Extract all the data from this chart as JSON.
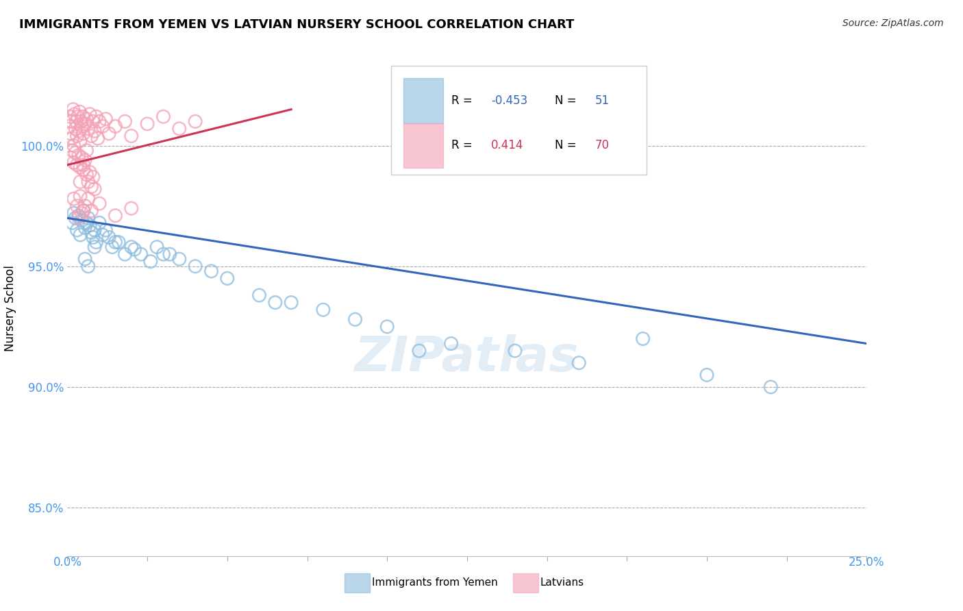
{
  "title": "IMMIGRANTS FROM YEMEN VS LATVIAN NURSERY SCHOOL CORRELATION CHART",
  "source": "Source: ZipAtlas.com",
  "ylabel": "Nursery School",
  "yticks": [
    85.0,
    90.0,
    95.0,
    100.0
  ],
  "ylim": [
    83.0,
    103.5
  ],
  "xlim": [
    0.0,
    25.0
  ],
  "blue_color": "#8bbcde",
  "pink_color": "#f4a0b5",
  "blue_line_color": "#3366bb",
  "pink_line_color": "#cc3355",
  "blue_scatter_x": [
    0.15,
    0.2,
    0.25,
    0.3,
    0.35,
    0.4,
    0.45,
    0.5,
    0.55,
    0.6,
    0.65,
    0.7,
    0.75,
    0.8,
    0.85,
    0.9,
    1.0,
    1.1,
    1.2,
    1.4,
    1.6,
    1.8,
    2.0,
    2.3,
    2.6,
    3.0,
    3.5,
    4.0,
    5.0,
    6.0,
    7.0,
    8.0,
    9.0,
    10.0,
    12.0,
    14.0,
    16.0,
    18.0,
    20.0,
    22.0,
    1.3,
    1.5,
    2.1,
    2.8,
    3.2,
    4.5,
    6.5,
    11.0,
    0.55,
    0.65,
    0.85
  ],
  "blue_scatter_y": [
    96.8,
    97.2,
    97.0,
    96.5,
    97.1,
    96.3,
    96.9,
    97.3,
    96.6,
    96.8,
    97.0,
    96.7,
    96.4,
    96.2,
    96.5,
    96.0,
    96.8,
    96.3,
    96.5,
    95.8,
    96.0,
    95.5,
    95.8,
    95.5,
    95.2,
    95.5,
    95.3,
    95.0,
    94.5,
    93.8,
    93.5,
    93.2,
    92.8,
    92.5,
    91.8,
    91.5,
    91.0,
    92.0,
    90.5,
    90.0,
    96.2,
    96.0,
    95.7,
    95.8,
    95.5,
    94.8,
    93.5,
    91.5,
    95.3,
    95.0,
    95.8
  ],
  "pink_scatter_x": [
    0.05,
    0.08,
    0.1,
    0.12,
    0.15,
    0.18,
    0.2,
    0.22,
    0.25,
    0.28,
    0.3,
    0.32,
    0.35,
    0.38,
    0.4,
    0.42,
    0.45,
    0.48,
    0.5,
    0.55,
    0.6,
    0.65,
    0.7,
    0.75,
    0.8,
    0.85,
    0.9,
    0.95,
    1.0,
    1.1,
    1.2,
    1.3,
    1.5,
    1.8,
    2.0,
    2.5,
    3.0,
    3.5,
    4.0,
    0.1,
    0.15,
    0.2,
    0.25,
    0.3,
    0.35,
    0.4,
    0.45,
    0.5,
    0.55,
    0.6,
    0.65,
    0.7,
    0.75,
    0.8,
    0.85,
    0.2,
    0.3,
    0.4,
    0.5,
    1.0,
    1.5,
    2.0,
    0.35,
    0.45,
    0.55,
    0.65,
    0.75,
    0.6,
    0.4,
    0.5
  ],
  "pink_scatter_y": [
    100.8,
    101.2,
    100.5,
    101.0,
    100.3,
    101.5,
    100.0,
    101.3,
    100.7,
    101.0,
    100.4,
    101.2,
    100.6,
    101.4,
    100.2,
    101.0,
    100.8,
    101.2,
    100.5,
    100.9,
    101.1,
    100.7,
    101.3,
    100.4,
    101.0,
    100.6,
    101.2,
    100.3,
    101.0,
    100.8,
    101.1,
    100.5,
    100.8,
    101.0,
    100.4,
    100.9,
    101.2,
    100.7,
    101.0,
    99.5,
    99.8,
    99.3,
    99.7,
    99.2,
    99.6,
    99.1,
    99.5,
    99.0,
    99.4,
    98.8,
    98.5,
    98.9,
    98.3,
    98.7,
    98.2,
    97.8,
    97.5,
    97.9,
    97.3,
    97.6,
    97.1,
    97.4,
    97.0,
    97.2,
    97.5,
    97.8,
    97.3,
    99.8,
    98.5,
    99.2
  ],
  "blue_line_x0": 0.0,
  "blue_line_x1": 25.0,
  "blue_line_y0": 97.0,
  "blue_line_y1": 91.8,
  "pink_line_x0": 0.0,
  "pink_line_x1": 7.0,
  "pink_line_y0": 99.2,
  "pink_line_y1": 101.5,
  "legend_items": [
    {
      "label_r": "R = -0.453",
      "label_n": "N =  51",
      "color": "#8bbcde",
      "r_color": "#3366bb",
      "n_color": "#3366bb"
    },
    {
      "label_r": "R =  0.414",
      "label_n": "N = 70",
      "color": "#f4a0b5",
      "r_color": "#cc3355",
      "n_color": "#cc3355"
    }
  ]
}
